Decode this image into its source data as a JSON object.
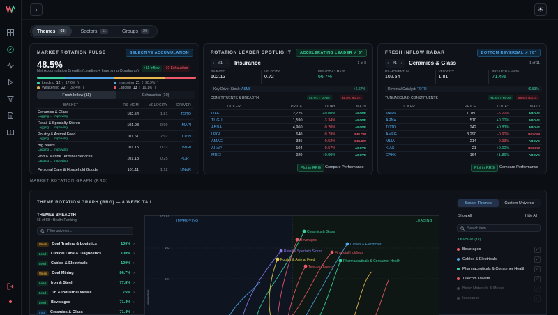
{
  "topbar": {
    "nav_glyph": "›",
    "theme_glyph": "☀"
  },
  "tabs": [
    {
      "label": "Themes",
      "count": "68"
    },
    {
      "label": "Sectors",
      "count": "11"
    },
    {
      "label": "Groups",
      "count": "20"
    }
  ],
  "pulse": {
    "title": "MARKET ROTATION PULSE",
    "badge": "SELECTIVE ACCUMULATION",
    "value": "48.5%",
    "subtitle": "Net Accumulation Breadth (Leading + Improving Quadrants)",
    "inflow": "+11 Inflow",
    "exhaustion": "-10 Exhaustion",
    "legend": [
      {
        "label": "Leading",
        "n": "12",
        "pct": "17.6%",
        "color": "#38d39f"
      },
      {
        "label": "Improving",
        "n": "21",
        "pct": "30.9%",
        "color": "#4fa6e8"
      },
      {
        "label": "Weakening",
        "n": "22",
        "pct": "32.4%",
        "color": "#e8b84f"
      },
      {
        "label": "Lagging",
        "n": "13",
        "pct": "19.1%",
        "color": "#ef5a6b"
      }
    ],
    "tab_a": "Fresh Inflow (11)",
    "tab_b": "Exhaustion (10)",
    "headers": [
      "BASKET",
      "RS-MOM",
      "VELOCITY",
      "DRIVER"
    ],
    "rows": [
      {
        "name": "Ceramics & Glass",
        "state": "Lagging → Improving",
        "rs": "102.54",
        "vel": "1.81",
        "driver": "TOTO"
      },
      {
        "name": "Retail & Specialty Stores",
        "state": "Lagging → Improving",
        "rs": "101.93",
        "vel": "0.99",
        "driver": "MAPI"
      },
      {
        "name": "Poultry & Animal Feed",
        "state": "Lagging → Improving",
        "rs": "101.61",
        "vel": "2.92",
        "driver": "CPIN"
      },
      {
        "name": "Big Banks",
        "state": "Lagging → Improving",
        "rs": "101.15",
        "vel": "0.32",
        "driver": "BBRI"
      },
      {
        "name": "Port & Marine Terminal Services",
        "state": "Lagging → Improving",
        "rs": "101.13",
        "vel": "0.25",
        "driver": "PORT"
      },
      {
        "name": "Personal Care & Household Goods",
        "state": "",
        "rs": "101.11",
        "vel": "1.12",
        "driver": "UNVR"
      }
    ]
  },
  "leader": {
    "title": "ROTATION LEADER SPOTLIGHT",
    "badge": "ACCELERATING LEADER ↗ 6°",
    "rank": "#1",
    "name": "Insurance",
    "pager": "1 of 8",
    "metrics": [
      {
        "label": "RS-RATIO",
        "value": "102.13"
      },
      {
        "label": "VELOCITY",
        "value": "0.72"
      },
      {
        "label": "BREADTH > MA20",
        "value": "66.7%"
      }
    ],
    "driver_label": "Key Driver Stock:",
    "driver": "ASMI",
    "driver_chg": "+6.67%",
    "section": "CONSTITUENTS & BREADTH",
    "chip1": "66.7% > MA20",
    "chip2": "33.3% Green",
    "headers": [
      "TICKER",
      "PRICE",
      "TODAY",
      "MA20"
    ],
    "rows": [
      {
        "t": "LIFE",
        "p": "12,725",
        "c": "+0.00%",
        "m": "ABOVE"
      },
      {
        "t": "TUGU",
        "p": "1,590",
        "c": "-3.34%",
        "m": "ABOVE"
      },
      {
        "t": "ABDA",
        "p": "4,960",
        "c": "-0.20%",
        "m": "ABOVE"
      },
      {
        "t": "LPGI",
        "p": "640",
        "c": "-0.78%",
        "m": "BELOW"
      },
      {
        "t": "AMAG",
        "p": "386",
        "c": "-0.52%",
        "m": "BELOW"
      },
      {
        "t": "AHAP",
        "p": "104",
        "c": "-9.57%",
        "m": "ABOVE"
      },
      {
        "t": "MREI",
        "p": "920",
        "c": "+0.00%",
        "m": "ABOVE"
      }
    ],
    "plot_btn": "Plot in RRG",
    "compare_btn": "Compare Performance"
  },
  "inflow": {
    "title": "FRESH INFLOW RADAR",
    "badge": "BOTTOM REVERSAL ↗ 70°",
    "rank": "#1",
    "name": "Ceramics & Glass",
    "pager": "1 of 11",
    "metrics": [
      {
        "label": "RS-MOMENTUM",
        "value": "102.54"
      },
      {
        "label": "VELOCITY",
        "value": "1.81"
      },
      {
        "label": "BREADTH > MA20",
        "value": "71.4%"
      }
    ],
    "driver_label": "Reversal Catalyst:",
    "driver": "TOTO",
    "driver_chg": "+0.83%",
    "section": "TURNAROUND CONSTITUENTS",
    "chip1": "71.4% > MA20",
    "chip2": "28.6% Green",
    "headers": [
      "TICKER",
      "PRICE",
      "TODAY",
      "MA20"
    ],
    "rows": [
      {
        "t": "MARK",
        "p": "1,180",
        "c": "-5.22%",
        "m": "ABOVE"
      },
      {
        "t": "ARNA",
        "p": "510",
        "c": "+0.00%",
        "m": "ABOVE"
      },
      {
        "t": "TOTO",
        "p": "242",
        "c": "+0.83%",
        "m": "ABOVE"
      },
      {
        "t": "AMFG",
        "p": "3,290",
        "c": "-0.90%",
        "m": "BELOW"
      },
      {
        "t": "MLIA",
        "p": "214",
        "c": "-0.93%",
        "m": "ABOVE"
      },
      {
        "t": "KIAS",
        "p": "21",
        "c": "+0.00%",
        "m": "BELOW"
      },
      {
        "t": "CAKK",
        "p": "164",
        "c": "+1.86%",
        "m": "ABOVE"
      }
    ],
    "plot_btn": "Plot in RRG",
    "compare_btn": "Compare Performance"
  },
  "section_label": "MARKET ROTATION GRAPH (RRG)",
  "rrg": {
    "title": "THEME ROTATION GRAPH (RRG) — 8 WEEK TAIL",
    "breadth_title": "THEMES BREADTH",
    "breadth_sub": "68 of 68 • Health Ranking",
    "filter_placeholder": "Filter universe...",
    "list": [
      {
        "chip": "Weak",
        "name": "Coal Trading & Logistics",
        "pct": "100%"
      },
      {
        "chip": "Lead",
        "name": "Clinical Labs & Diagnostics",
        "pct": "100%"
      },
      {
        "chip": "Lead",
        "name": "Cables & Electricals",
        "pct": "100%"
      },
      {
        "chip": "Weak",
        "name": "Coal Mining",
        "pct": "86.7%"
      },
      {
        "chip": "Lead",
        "name": "Iron & Steel",
        "pct": "77.8%"
      },
      {
        "chip": "Lead",
        "name": "Tin & Industrial Metals",
        "pct": "75%"
      },
      {
        "chip": "Lead",
        "name": "Beverages",
        "pct": "71.4%"
      },
      {
        "chip": "Impr",
        "name": "Ceramics & Glass",
        "pct": "71.4%"
      }
    ],
    "quad_improving": "IMPROVING",
    "quad_leading": "LEADING",
    "yticks": [
      "103.54",
      "102",
      "101"
    ],
    "ylabel": "Momentum",
    "labels": [
      {
        "text": "Ceramics & Glass",
        "color": "#38d39f"
      },
      {
        "text": "Beverages",
        "color": "#ef5a6b"
      },
      {
        "text": "Cables & Electricals",
        "color": "#4fa6e8"
      },
      {
        "text": "Retail & Specialty Stores",
        "color": "#8f7bea"
      },
      {
        "text": "Financial Holdings",
        "color": "#ef5a6b"
      },
      {
        "text": "Poultry & Animal Feed",
        "color": "#e8d34f"
      },
      {
        "text": "Pharmaceuticals & Consumer Health",
        "color": "#38d39f"
      },
      {
        "text": "Telecom Towers",
        "color": "#ef5a6b"
      }
    ],
    "scope_a": "Scope: Themes",
    "scope_b": "Custom Universe",
    "show_all": "Show All",
    "hide_all": "Hide All",
    "search_placeholder": "Search item...",
    "leading_header": "LEADING (12)",
    "leading": [
      {
        "name": "Beverages",
        "color": "#ef5a6b"
      },
      {
        "name": "Cables & Electricals",
        "color": "#4fa6e8"
      },
      {
        "name": "Pharmaceuticals & Consumer Health",
        "color": "#38d39f"
      },
      {
        "name": "Telecom Towers",
        "color": "#ef5a6b"
      },
      {
        "name": "Basic Materials & Metals",
        "color": "#9aa4af"
      },
      {
        "name": "Insurance",
        "color": "#9aa4af"
      }
    ]
  }
}
